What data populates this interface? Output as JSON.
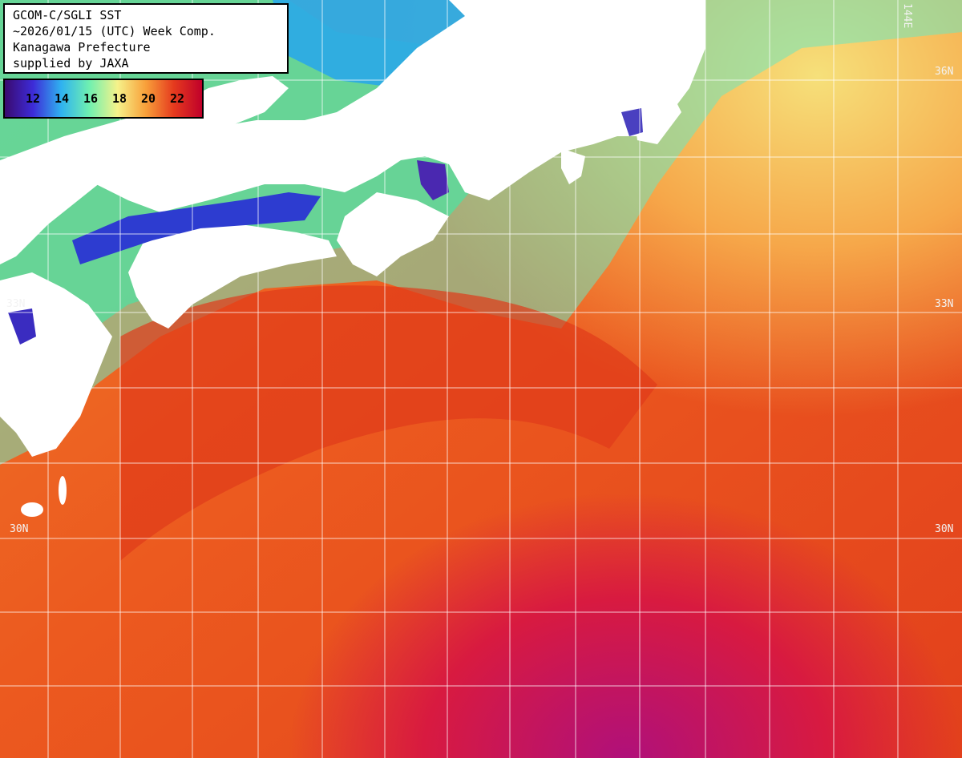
{
  "title": {
    "line1": "GCOM-C/SGLI SST",
    "line2": "~2026/01/15 (UTC) Week Comp.",
    "line3": "Kanagawa Prefecture",
    "line4": "supplied by JAXA"
  },
  "legend": {
    "ticks": [
      "12",
      "14",
      "16",
      "18",
      "20",
      "22"
    ],
    "colors": [
      "#3a0a6e",
      "#3d2bd8",
      "#2fb2f0",
      "#6ff0b0",
      "#f6f28a",
      "#f8a03a",
      "#e53a1e",
      "#c0002a"
    ]
  },
  "grid_labels": {
    "lat_33_left": "33N",
    "lat_33_right": "33N",
    "lat_30_left": "30N",
    "lat_30_right": "30N",
    "lat_36_right": "36N",
    "lon_144_top": "144E"
  },
  "colors": {
    "land": "#ffffff",
    "warm_sea": "#e8471c",
    "hot_sea": "#cc1a2a",
    "cool_sea": "#7fe0b4",
    "cold_sea": "#2d2fbf"
  }
}
